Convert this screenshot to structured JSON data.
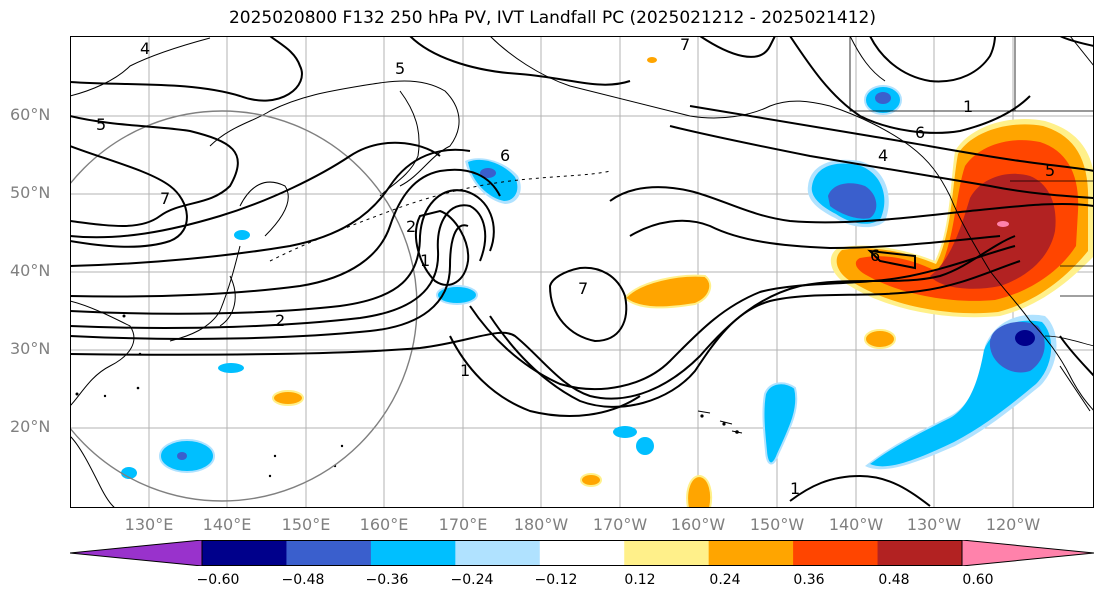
{
  "title": "2025020800 F132 250 hPa PV, IVT Landfall PC (2025021212 - 2025021412)",
  "lat_labels": [
    "60°N",
    "50°N",
    "40°N",
    "30°N",
    "20°N"
  ],
  "lon_labels": [
    "130°E",
    "140°E",
    "150°E",
    "160°E",
    "170°E",
    "180°W",
    "170°W",
    "160°W",
    "150°W",
    "140°W",
    "130°W",
    "120°W"
  ],
  "colorbar": {
    "ticks": [
      "−0.60",
      "−0.48",
      "−0.36",
      "−0.24",
      "−0.12",
      "0.12",
      "0.24",
      "0.36",
      "0.48",
      "0.60"
    ],
    "colors": [
      "#9932cc",
      "#00008b",
      "#3a5fcd",
      "#00bfff",
      "#b0e2ff",
      "#ffffff",
      "#fff08a",
      "#ffa500",
      "#ff4500",
      "#b22222",
      "#ff82ab"
    ]
  },
  "contour_labels": [
    "4",
    "5",
    "5",
    "7",
    "6",
    "2",
    "1",
    "7",
    "1",
    "2",
    "6",
    "4",
    "5",
    "1",
    "6",
    "1",
    "7"
  ]
}
